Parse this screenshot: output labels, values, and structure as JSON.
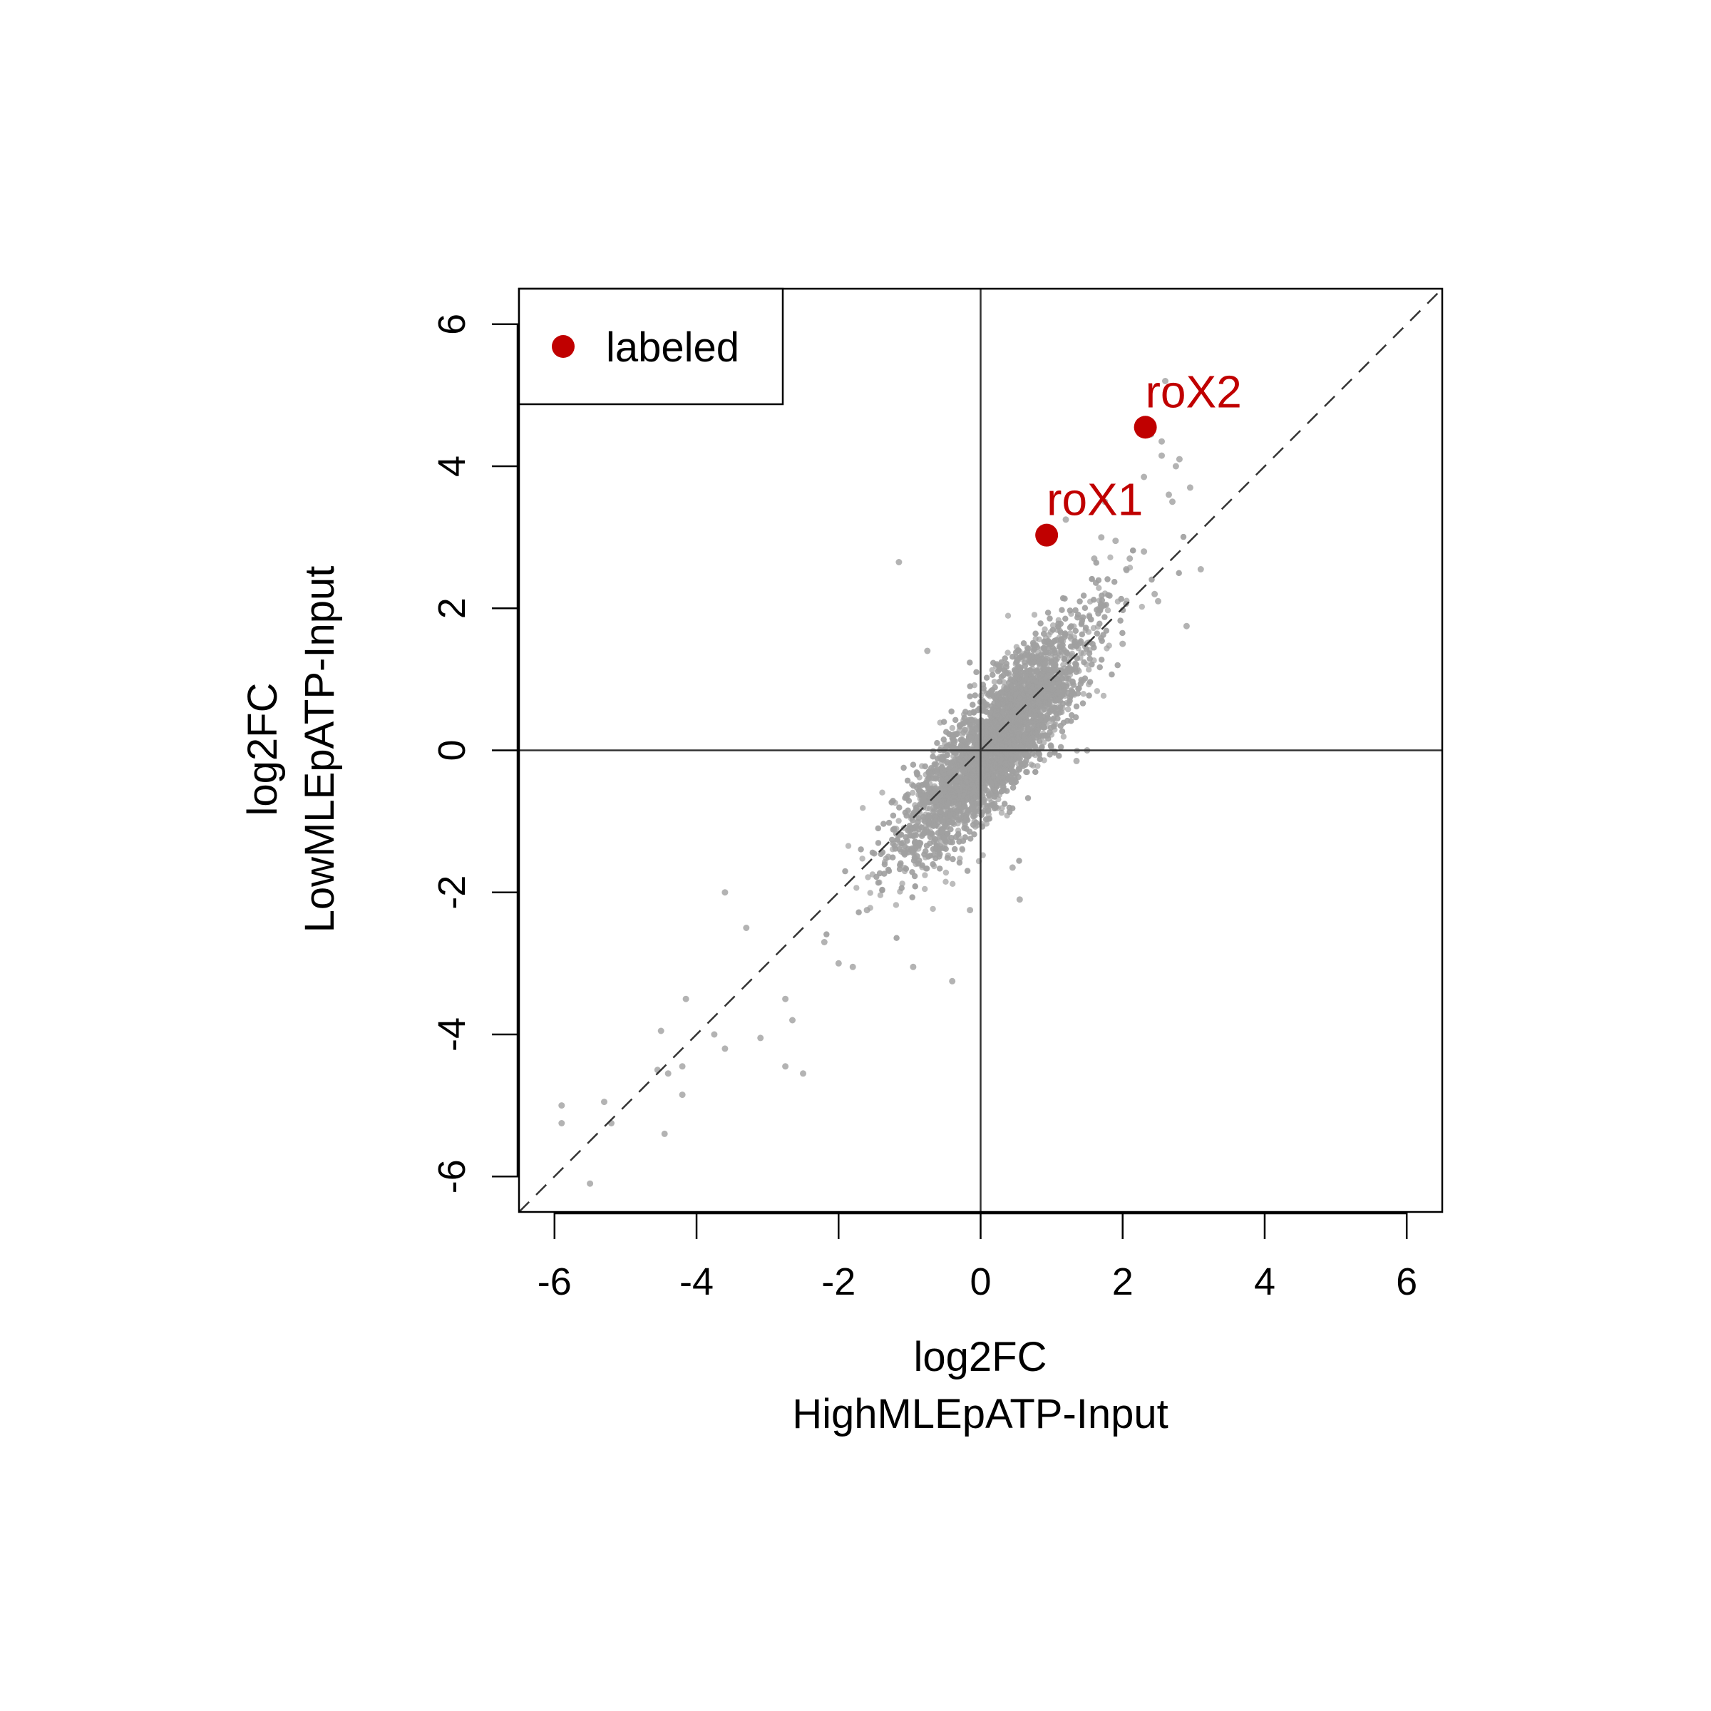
{
  "chart_data": {
    "type": "scatter",
    "title": "",
    "xlabel_line1": "log2FC",
    "xlabel_line2": "HighMLEpATP-Input",
    "ylabel_line1": "log2FC",
    "ylabel_line2": "LowMLEpATP-Input",
    "xlim": [
      -6.5,
      6.5
    ],
    "ylim": [
      -6.5,
      6.5
    ],
    "xticks": [
      -6,
      -4,
      -2,
      0,
      2,
      4,
      6
    ],
    "yticks": [
      -6,
      -4,
      -2,
      0,
      2,
      4,
      6
    ],
    "xtick_labels": [
      "-6",
      "-4",
      "-2",
      "0",
      "2",
      "4",
      "6"
    ],
    "ytick_labels": [
      "-6",
      "-4",
      "-2",
      "0",
      "2",
      "4",
      "6"
    ],
    "reference_lines": [
      "x=0",
      "y=0",
      "y=x (dashed)"
    ],
    "legend": {
      "label": "labeled",
      "placement": "top-left",
      "color": "#c00000"
    },
    "background_points": {
      "color": "#a0a0a0",
      "description": "dense cloud of genes along the diagonal",
      "outliers": [
        [
          -5.9,
          -5.0
        ],
        [
          -5.9,
          -5.25
        ],
        [
          -5.5,
          -6.1
        ],
        [
          -5.3,
          -4.95
        ],
        [
          -5.2,
          -5.25
        ],
        [
          -4.45,
          -5.4
        ],
        [
          -4.55,
          -4.5
        ],
        [
          -4.5,
          -3.95
        ],
        [
          -4.4,
          -4.55
        ],
        [
          -4.2,
          -4.45
        ],
        [
          -4.2,
          -4.85
        ],
        [
          -4.15,
          -3.5
        ],
        [
          -3.6,
          -2.0
        ],
        [
          -3.75,
          -4.0
        ],
        [
          -3.6,
          -4.2
        ],
        [
          -3.3,
          -2.5
        ],
        [
          -3.1,
          -4.05
        ],
        [
          -2.75,
          -3.5
        ],
        [
          -2.75,
          -4.45
        ],
        [
          -2.65,
          -3.8
        ],
        [
          -2.5,
          -4.55
        ],
        [
          -2.2,
          -2.7
        ],
        [
          -2.0,
          -3.0
        ],
        [
          -1.8,
          -3.05
        ],
        [
          -1.6,
          -2.25
        ],
        [
          -1.3,
          -1.5
        ],
        [
          -1.15,
          2.65
        ],
        [
          -0.95,
          -3.05
        ],
        [
          -0.75,
          1.4
        ],
        [
          -0.4,
          -3.25
        ],
        [
          -0.15,
          -2.25
        ],
        [
          0.55,
          -2.1
        ],
        [
          1.2,
          3.25
        ],
        [
          1.6,
          2.7
        ],
        [
          1.7,
          3.0
        ],
        [
          1.75,
          3.5
        ],
        [
          1.9,
          2.95
        ],
        [
          2.05,
          2.55
        ],
        [
          2.1,
          2.7
        ],
        [
          2.3,
          2.8
        ],
        [
          2.3,
          3.85
        ],
        [
          2.4,
          4.45
        ],
        [
          2.4,
          4.5
        ],
        [
          2.55,
          4.35
        ],
        [
          2.55,
          4.15
        ],
        [
          2.6,
          5.2
        ],
        [
          2.65,
          3.6
        ],
        [
          2.7,
          3.5
        ],
        [
          2.75,
          4.0
        ],
        [
          2.8,
          4.1
        ],
        [
          2.95,
          3.7
        ],
        [
          3.1,
          2.55
        ],
        [
          2.9,
          1.75
        ],
        [
          2.5,
          2.1
        ],
        [
          2.45,
          2.2
        ],
        [
          2.0,
          1.5
        ],
        [
          1.5,
          0.0
        ],
        [
          1.35,
          -0.15
        ],
        [
          0.45,
          -1.65
        ]
      ]
    },
    "labeled_points": [
      {
        "label": "roX1",
        "x": 0.93,
        "y": 3.03,
        "color": "#c00000"
      },
      {
        "label": "roX2",
        "x": 2.32,
        "y": 4.55,
        "color": "#c00000"
      }
    ]
  }
}
